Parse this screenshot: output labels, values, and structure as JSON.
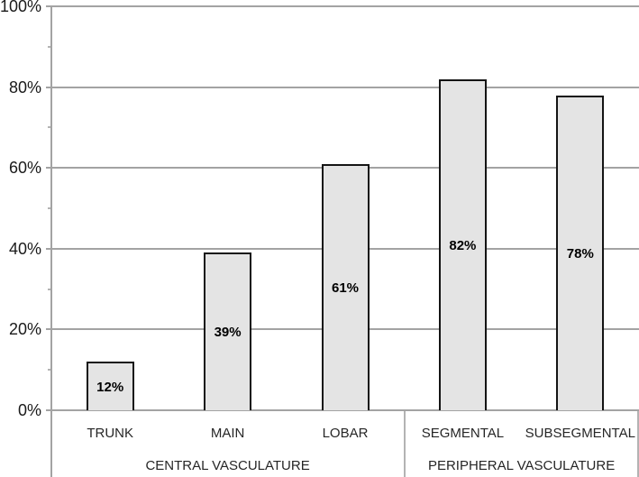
{
  "chart_data": {
    "type": "bar",
    "title": "",
    "xlabel": "",
    "ylabel": "",
    "categories": [
      "TRUNK",
      "MAIN",
      "LOBAR",
      "SEGMENTAL",
      "SUBSEGMENTAL"
    ],
    "values": [
      12,
      39,
      61,
      82,
      78
    ],
    "data_labels": [
      "12%",
      "39%",
      "61%",
      "82%",
      "78%"
    ],
    "groups": [
      {
        "label": "CENTRAL VASCULATURE",
        "start": 0,
        "end": 2
      },
      {
        "label": "PERIPHERAL VASCULATURE",
        "start": 3,
        "end": 4
      }
    ],
    "ylim": [
      0,
      100
    ],
    "major_step": 20,
    "minor_step": 10,
    "y_tick_labels": [
      "0%",
      "20%",
      "40%",
      "60%",
      "80%",
      "100%"
    ],
    "grid": "on",
    "legend": "none",
    "colors": {
      "bar_fill": "#e4e4e4",
      "bar_border": "#141414",
      "gridline": "#a3a3a3",
      "axis": "#a3a3a3",
      "separator": "#b3b3b3",
      "minor_tick": "#b3b3b3",
      "label_text": "#1a1a1a",
      "category_text": "#262626",
      "background": "#ffffff"
    }
  }
}
